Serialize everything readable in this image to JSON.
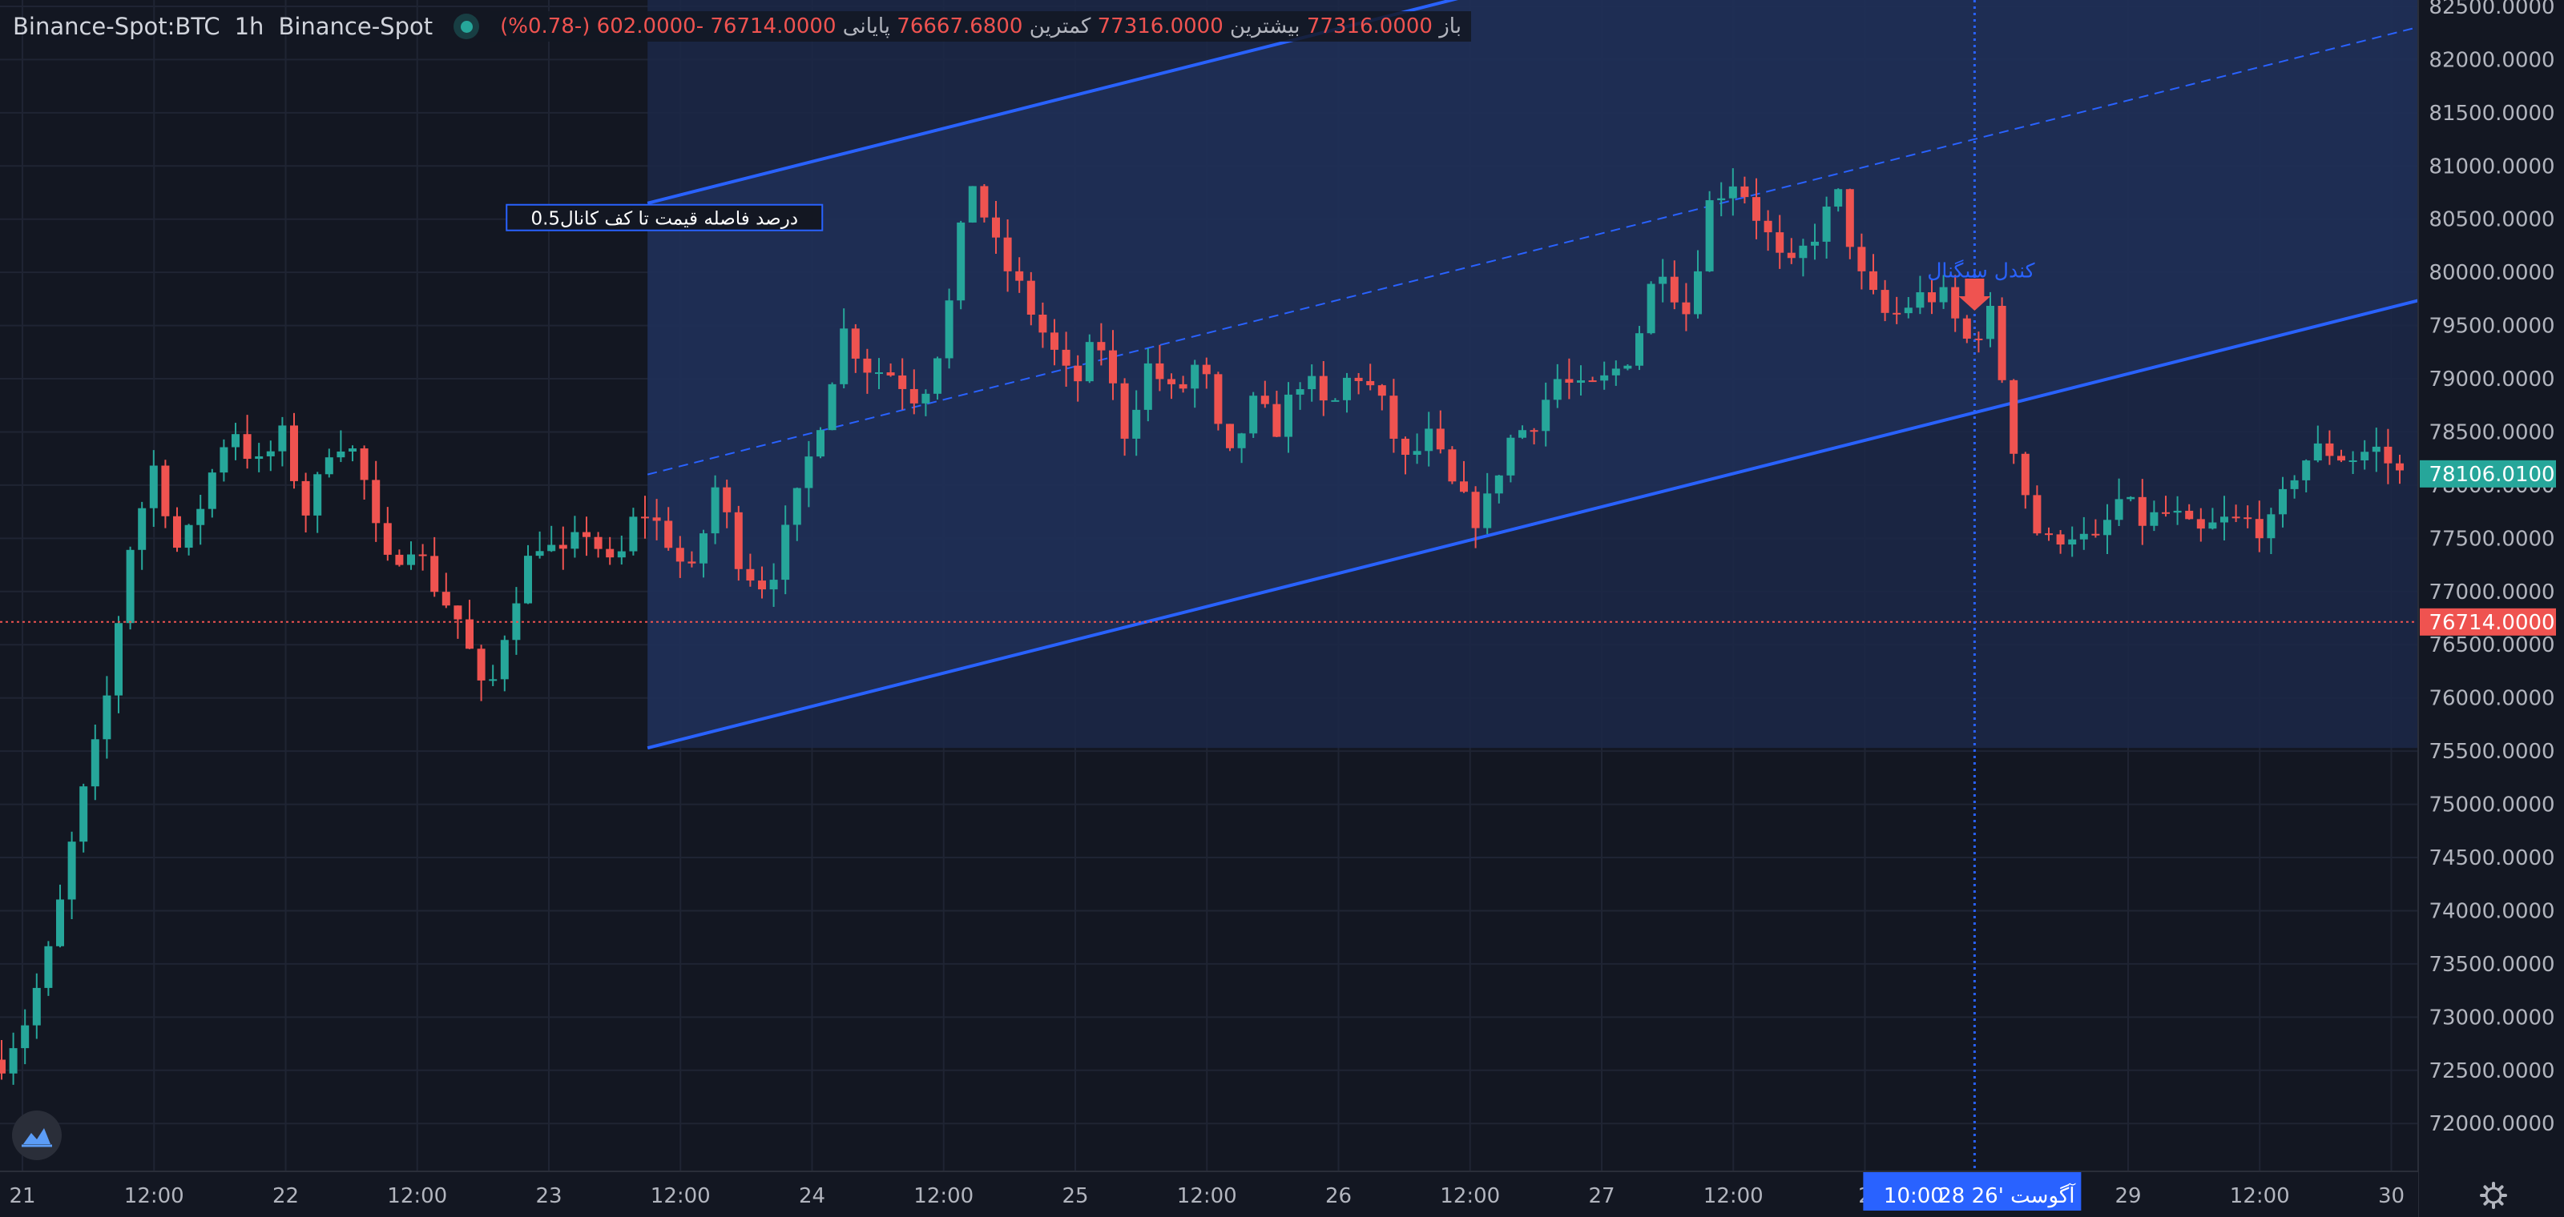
{
  "header": {
    "symbol": "Binance-Spot:BTC",
    "interval": "1h",
    "exchange": "Binance-Spot",
    "open_label": "باز",
    "open_value": "77316.0000",
    "high_label": "بیشترین",
    "high_value": "77316.0000",
    "low_label": "کمترین",
    "low_value": "76667.6800",
    "close_label": "پایانی",
    "close_value": "76714.0000",
    "change_value": "-602.0000",
    "change_pct": "(-0.78%)"
  },
  "colors": {
    "background": "#131722",
    "up": "#26a69a",
    "down": "#ef5350",
    "channel": "#2962ff",
    "channel_fill": "#1c2848",
    "crosshair": "#2962ff",
    "last_price_badge": "#ef5350",
    "live_price_badge": "#26a69a"
  },
  "chart_data": {
    "type": "candlestick",
    "title": "Binance-Spot:BTC",
    "interval": "1h",
    "y_axis": {
      "ticks": [
        "72000.0000",
        "72500.0000",
        "73000.0000",
        "73500.0000",
        "74000.0000",
        "74500.0000",
        "75000.0000",
        "75500.0000",
        "76000.0000",
        "76500.0000",
        "77000.0000",
        "77500.0000",
        "78000.0000",
        "78500.0000",
        "79000.0000",
        "79500.0000",
        "80000.0000",
        "80500.0000",
        "81000.0000",
        "81500.0000",
        "82000.0000",
        "82500.0000"
      ],
      "range": [
        71550,
        82560
      ],
      "side": "right"
    },
    "x_axis": {
      "ticks": [
        "21",
        "12:00",
        "22",
        "12:00",
        "23",
        "12:00",
        "24",
        "12:00",
        "25",
        "12:00",
        "26",
        "12:00",
        "27",
        "12:00",
        "2",
        "29",
        "12:00",
        "30"
      ],
      "range": [
        "21 00:00",
        "30 03:00"
      ]
    },
    "grid": true,
    "closing_price_line": {
      "value": 76714,
      "label": "76714.0000"
    },
    "live_price_badge": {
      "value": 78106.01,
      "label": "78106.0100"
    },
    "crosshair": {
      "date_label": "28 آگوست '26",
      "time_label": "10:00"
    },
    "price_levels": [
      72600,
      73000,
      73700,
      74900,
      75800,
      77400,
      78200,
      77300,
      77950,
      78600,
      78150,
      78450,
      77700,
      78500,
      78250,
      77200,
      77500,
      77050,
      76700,
      75900,
      76900,
      77500,
      77300,
      77600,
      77150,
      77800,
      77550,
      77100,
      78000,
      77250,
      77050,
      77700,
      78550,
      79450,
      79100,
      79050,
      78800,
      79500,
      80900,
      80200,
      79800,
      79350,
      78900,
      79400,
      78500,
      79150,
      78800,
      79200,
      78150,
      78750,
      78550,
      79050,
      78650,
      79100,
      78800,
      78200,
      78450,
      77900,
      77650,
      78400,
      78600,
      79000,
      78850,
      79000,
      79300,
      80150,
      79600,
      80700,
      80900,
      80450,
      79950,
      80350,
      80700,
      79850,
      79550,
      79750,
      79800,
      79350,
      79600,
      78200,
      77400,
      77600,
      77400,
      77850,
      77650,
      77750,
      77500,
      77650,
      77650,
      77600,
      78200,
      78350,
      78250,
      78350,
      78100
    ],
    "channel": {
      "start": {
        "time": "23 09:00",
        "price": 75530
      },
      "end": {
        "time": "30 03:00",
        "price": 79750
      },
      "upper_start_price": 80650,
      "midline_start_price": 78100
    },
    "annotations": [
      {
        "text": "0.5درصد فاصله قیمت تا کف کانال",
        "time": "23 12:00",
        "price": 80500
      },
      {
        "text": "کندل سیگنال",
        "time": "28 10:00",
        "price": 80020
      }
    ],
    "signal_marker": {
      "time": "28 10:00",
      "price": 79640,
      "direction": "down"
    }
  }
}
